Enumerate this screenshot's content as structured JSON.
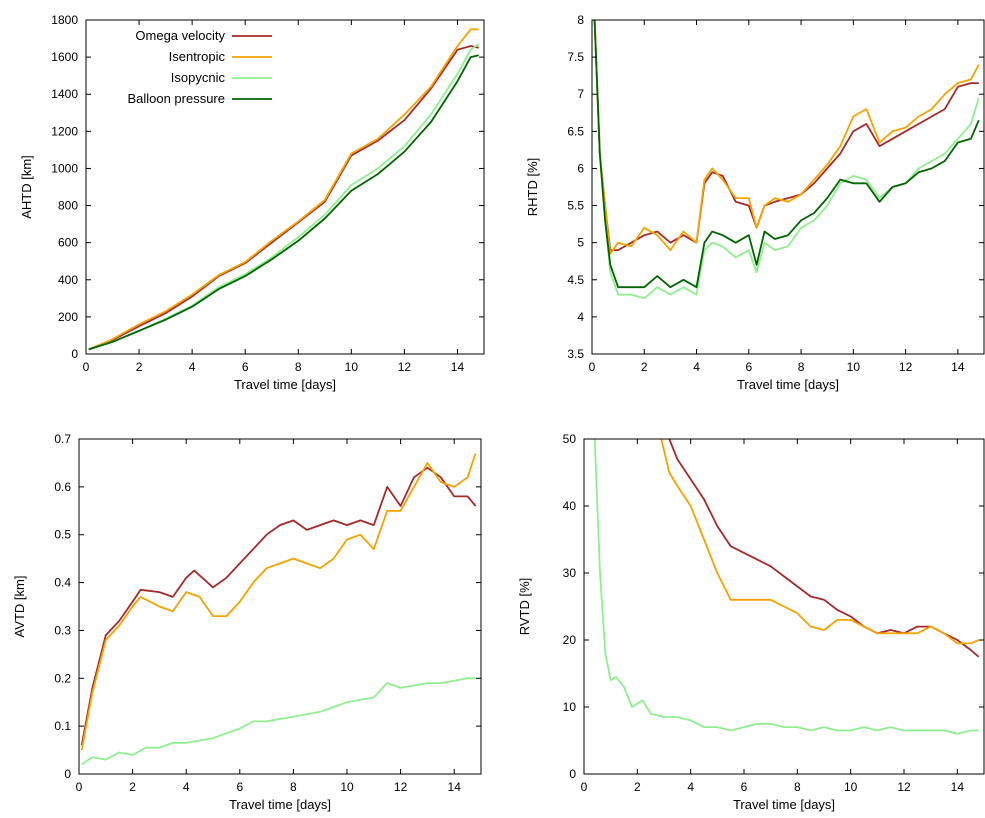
{
  "series_styles": [
    {
      "name": "Omega velocity",
      "color": "#a52a2a"
    },
    {
      "name": "Isentropic",
      "color": "#f5a300"
    },
    {
      "name": "Isopycnic",
      "color": "#90ee90"
    },
    {
      "name": "Balloon pressure",
      "color": "#006400"
    }
  ],
  "chart_data": [
    {
      "type": "line",
      "xlabel": "Travel time [days]",
      "ylabel": "AHTD [km]",
      "xlim": [
        0,
        15
      ],
      "ylim": [
        0,
        1800
      ],
      "xticks": [
        0,
        2,
        4,
        6,
        8,
        10,
        12,
        14
      ],
      "yticks": [
        0,
        200,
        400,
        600,
        800,
        1000,
        1200,
        1400,
        1600,
        1800
      ],
      "legend": {
        "position": "top-left",
        "entries": [
          "Omega velocity",
          "Isentropic",
          "Isopycnic",
          "Balloon pressure"
        ]
      },
      "series": [
        {
          "name": "Omega velocity",
          "x": [
            0.1,
            1,
            2,
            3,
            4,
            5,
            6,
            7,
            8,
            9,
            10,
            11,
            12,
            13,
            14,
            14.5,
            14.8
          ],
          "y": [
            25,
            75,
            150,
            220,
            310,
            420,
            490,
            600,
            710,
            820,
            1070,
            1150,
            1260,
            1430,
            1640,
            1660,
            1650
          ]
        },
        {
          "name": "Isentropic",
          "x": [
            0.1,
            1,
            2,
            3,
            4,
            5,
            6,
            7,
            8,
            9,
            10,
            11,
            12,
            13,
            14,
            14.5,
            14.8
          ],
          "y": [
            25,
            80,
            160,
            230,
            320,
            425,
            495,
            610,
            715,
            830,
            1080,
            1160,
            1290,
            1440,
            1660,
            1750,
            1750
          ]
        },
        {
          "name": "Isopycnic",
          "x": [
            0.1,
            1,
            2,
            3,
            4,
            5,
            6,
            7,
            8,
            9,
            10,
            11,
            12,
            13,
            14,
            14.5,
            14.8
          ],
          "y": [
            25,
            65,
            125,
            190,
            260,
            360,
            430,
            520,
            630,
            750,
            910,
            1000,
            1120,
            1290,
            1510,
            1640,
            1670
          ]
        },
        {
          "name": "Balloon pressure",
          "x": [
            0.1,
            1,
            2,
            3,
            4,
            5,
            6,
            7,
            8,
            9,
            10,
            11,
            12,
            13,
            14,
            14.5,
            14.8
          ],
          "y": [
            25,
            65,
            125,
            185,
            255,
            350,
            420,
            510,
            610,
            730,
            880,
            970,
            1090,
            1250,
            1470,
            1600,
            1610
          ]
        }
      ]
    },
    {
      "type": "line",
      "xlabel": "Travel time [days]",
      "ylabel": "RHTD [%]",
      "xlim": [
        0,
        15
      ],
      "ylim": [
        3.5,
        8
      ],
      "xticks": [
        0,
        2,
        4,
        6,
        8,
        10,
        12,
        14
      ],
      "yticks": [
        3.5,
        4,
        4.5,
        5,
        5.5,
        6,
        6.5,
        7,
        7.5,
        8
      ],
      "series": [
        {
          "name": "Omega velocity",
          "x": [
            0.1,
            0.3,
            0.5,
            0.7,
            1,
            1.5,
            2,
            2.5,
            3,
            3.5,
            4,
            4.3,
            4.6,
            5,
            5.5,
            6,
            6.3,
            6.6,
            7,
            7.5,
            8,
            8.5,
            9,
            9.5,
            10,
            10.5,
            11,
            11.5,
            12,
            12.5,
            13,
            13.5,
            14,
            14.5,
            14.8
          ],
          "y": [
            8,
            6.2,
            5.5,
            4.9,
            4.9,
            5.0,
            5.1,
            5.15,
            5.0,
            5.1,
            5.0,
            5.8,
            5.95,
            5.9,
            5.55,
            5.5,
            5.2,
            5.5,
            5.55,
            5.6,
            5.65,
            5.8,
            6.0,
            6.2,
            6.5,
            6.6,
            6.3,
            6.4,
            6.5,
            6.6,
            6.7,
            6.8,
            7.1,
            7.15,
            7.15
          ]
        },
        {
          "name": "Isentropic",
          "x": [
            0.1,
            0.3,
            0.5,
            0.7,
            1,
            1.5,
            2,
            2.5,
            3,
            3.5,
            4,
            4.3,
            4.6,
            5,
            5.5,
            6,
            6.3,
            6.6,
            7,
            7.5,
            8,
            8.5,
            9,
            9.5,
            10,
            10.5,
            11,
            11.5,
            12,
            12.5,
            13,
            13.5,
            14,
            14.5,
            14.8
          ],
          "y": [
            8,
            6.2,
            5.5,
            4.85,
            5.0,
            4.95,
            5.2,
            5.1,
            4.9,
            5.15,
            5.0,
            5.85,
            6.0,
            5.85,
            5.6,
            5.6,
            5.2,
            5.5,
            5.6,
            5.55,
            5.65,
            5.85,
            6.05,
            6.3,
            6.7,
            6.8,
            6.35,
            6.5,
            6.55,
            6.7,
            6.8,
            7.0,
            7.15,
            7.2,
            7.4
          ]
        },
        {
          "name": "Isopycnic",
          "x": [
            0.1,
            0.3,
            0.5,
            0.7,
            1,
            1.5,
            2,
            2.5,
            3,
            3.5,
            4,
            4.3,
            4.6,
            5,
            5.5,
            6,
            6.3,
            6.6,
            7,
            7.5,
            8,
            8.5,
            9,
            9.5,
            10,
            10.5,
            11,
            11.5,
            12,
            12.5,
            13,
            13.5,
            14,
            14.5,
            14.8
          ],
          "y": [
            8,
            6.2,
            5.3,
            4.6,
            4.3,
            4.3,
            4.25,
            4.4,
            4.3,
            4.4,
            4.3,
            4.9,
            5.0,
            4.95,
            4.8,
            4.9,
            4.6,
            5.0,
            4.9,
            4.95,
            5.2,
            5.3,
            5.5,
            5.8,
            5.9,
            5.85,
            5.6,
            5.75,
            5.8,
            6.0,
            6.1,
            6.2,
            6.4,
            6.6,
            6.95
          ]
        },
        {
          "name": "Balloon pressure",
          "x": [
            0.1,
            0.3,
            0.5,
            0.7,
            1,
            1.5,
            2,
            2.5,
            3,
            3.5,
            4,
            4.3,
            4.6,
            5,
            5.5,
            6,
            6.3,
            6.6,
            7,
            7.5,
            8,
            8.5,
            9,
            9.5,
            10,
            10.5,
            11,
            11.5,
            12,
            12.5,
            13,
            13.5,
            14,
            14.5,
            14.8
          ],
          "y": [
            8,
            6.2,
            5.3,
            4.7,
            4.4,
            4.4,
            4.4,
            4.55,
            4.4,
            4.5,
            4.4,
            5.0,
            5.15,
            5.1,
            5.0,
            5.1,
            4.7,
            5.15,
            5.05,
            5.1,
            5.3,
            5.4,
            5.6,
            5.85,
            5.8,
            5.8,
            5.55,
            5.75,
            5.8,
            5.95,
            6.0,
            6.1,
            6.35,
            6.4,
            6.65
          ]
        }
      ]
    },
    {
      "type": "line",
      "xlabel": "Travel time [days]",
      "ylabel": "AVTD [km]",
      "xlim": [
        0,
        15
      ],
      "ylim": [
        0,
        0.7
      ],
      "xticks": [
        0,
        2,
        4,
        6,
        8,
        10,
        12,
        14
      ],
      "yticks": [
        0,
        0.1,
        0.2,
        0.3,
        0.4,
        0.5,
        0.6,
        0.7
      ],
      "series": [
        {
          "name": "Omega velocity",
          "x": [
            0.1,
            0.5,
            1,
            1.5,
            2,
            2.3,
            3,
            3.5,
            4,
            4.3,
            5,
            5.5,
            6,
            6.5,
            7,
            7.5,
            8,
            8.5,
            9,
            9.5,
            10,
            10.5,
            11,
            11.5,
            12,
            12.5,
            13,
            13.5,
            14,
            14.5,
            14.8
          ],
          "y": [
            0.06,
            0.18,
            0.29,
            0.32,
            0.36,
            0.385,
            0.38,
            0.37,
            0.41,
            0.425,
            0.39,
            0.41,
            0.44,
            0.47,
            0.5,
            0.52,
            0.53,
            0.51,
            0.52,
            0.53,
            0.52,
            0.53,
            0.52,
            0.6,
            0.56,
            0.62,
            0.64,
            0.62,
            0.58,
            0.58,
            0.56
          ]
        },
        {
          "name": "Isentropic",
          "x": [
            0.1,
            0.5,
            1,
            1.5,
            2,
            2.3,
            3,
            3.5,
            4,
            4.5,
            5,
            5.5,
            6,
            6.5,
            7,
            7.5,
            8,
            8.5,
            9,
            9.5,
            10,
            10.5,
            11,
            11.5,
            12,
            12.5,
            13,
            13.5,
            14,
            14.5,
            14.8
          ],
          "y": [
            0.05,
            0.17,
            0.28,
            0.31,
            0.35,
            0.37,
            0.35,
            0.34,
            0.38,
            0.37,
            0.33,
            0.33,
            0.36,
            0.4,
            0.43,
            0.44,
            0.45,
            0.44,
            0.43,
            0.45,
            0.49,
            0.5,
            0.47,
            0.55,
            0.55,
            0.6,
            0.65,
            0.61,
            0.6,
            0.62,
            0.67
          ]
        },
        {
          "name": "Isopycnic",
          "x": [
            0.1,
            0.5,
            1,
            1.5,
            2,
            2.5,
            3,
            3.5,
            4,
            4.5,
            5,
            5.5,
            6,
            6.5,
            7,
            7.5,
            8,
            8.5,
            9,
            9.5,
            10,
            10.5,
            11,
            11.5,
            12,
            12.5,
            13,
            13.5,
            14,
            14.5,
            14.8
          ],
          "y": [
            0.02,
            0.035,
            0.03,
            0.045,
            0.04,
            0.055,
            0.055,
            0.065,
            0.065,
            0.07,
            0.075,
            0.085,
            0.095,
            0.11,
            0.11,
            0.115,
            0.12,
            0.125,
            0.13,
            0.14,
            0.15,
            0.155,
            0.16,
            0.19,
            0.18,
            0.185,
            0.19,
            0.19,
            0.195,
            0.2,
            0.2
          ]
        }
      ]
    },
    {
      "type": "line",
      "xlabel": "Travel time [days]",
      "ylabel": "RVTD [%]",
      "xlim": [
        0,
        15
      ],
      "ylim": [
        0,
        50
      ],
      "xticks": [
        0,
        2,
        4,
        6,
        8,
        10,
        12,
        14
      ],
      "yticks": [
        0,
        10,
        20,
        30,
        40,
        50
      ],
      "series": [
        {
          "name": "Omega velocity",
          "x": [
            3.2,
            3.5,
            4,
            4.5,
            5,
            5.5,
            6,
            6.5,
            7,
            7.5,
            8,
            8.5,
            9,
            9.5,
            10,
            10.5,
            11,
            11.5,
            12,
            12.5,
            13,
            13.5,
            14,
            14.5,
            14.8
          ],
          "y": [
            50,
            47,
            44,
            41,
            37,
            34,
            33,
            32,
            31,
            29.5,
            28,
            26.5,
            26,
            24.5,
            23.5,
            22,
            21,
            21.5,
            21,
            22,
            22,
            21,
            20,
            18.5,
            17.5
          ]
        },
        {
          "name": "Isentropic",
          "x": [
            2.9,
            3.2,
            3.5,
            4,
            4.5,
            5,
            5.5,
            6,
            6.5,
            7,
            7.5,
            8,
            8.5,
            9,
            9.5,
            10,
            10.5,
            11,
            11.5,
            12,
            12.5,
            13,
            13.5,
            14,
            14.5,
            14.8
          ],
          "y": [
            50,
            45,
            43,
            40,
            35,
            30,
            26,
            26,
            26,
            26,
            25,
            24,
            22,
            21.5,
            23,
            23,
            22,
            21,
            21,
            21,
            21,
            22,
            21,
            19.5,
            19.5,
            20
          ]
        },
        {
          "name": "Isopycnic",
          "x": [
            0.4,
            0.6,
            0.8,
            1,
            1.2,
            1.5,
            1.8,
            2.2,
            2.5,
            3,
            3.5,
            4,
            4.5,
            5,
            5.5,
            6,
            6.5,
            7,
            7.5,
            8,
            8.5,
            9,
            9.5,
            10,
            10.5,
            11,
            11.5,
            12,
            12.5,
            13,
            13.5,
            14,
            14.5,
            14.8
          ],
          "y": [
            50,
            30,
            18,
            14,
            14.5,
            13,
            10,
            11,
            9,
            8.5,
            8.5,
            8,
            7,
            7,
            6.5,
            7,
            7.5,
            7.5,
            7,
            7,
            6.5,
            7,
            6.5,
            6.5,
            7,
            6.5,
            7,
            6.5,
            6.5,
            6.5,
            6.5,
            6,
            6.5,
            6.5
          ]
        }
      ]
    }
  ]
}
